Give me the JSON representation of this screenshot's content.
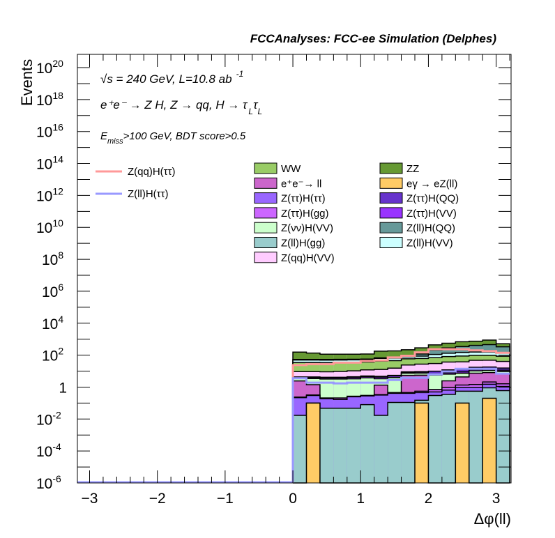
{
  "chart_data": {
    "type": "bar",
    "stacked": true,
    "title": "FCCAnalyses: FCC-ee Simulation (Delphes)",
    "xlabel": "Δφ(ll)",
    "ylabel": "Events",
    "xlim": [
      -3.18,
      3.22
    ],
    "ylim_log10": [
      -6,
      20.83
    ],
    "yscale": "log",
    "x_tick_labels": [
      "−3",
      "−2",
      "−1",
      "0",
      "1",
      "2",
      "3"
    ],
    "x_tick_values": [
      -3,
      -2,
      -1,
      0,
      1,
      2,
      3
    ],
    "y_tick_labels": [
      {
        "base": "10",
        "exp": "20",
        "v": 20
      },
      {
        "base": "10",
        "exp": "18",
        "v": 18
      },
      {
        "base": "10",
        "exp": "16",
        "v": 16
      },
      {
        "base": "10",
        "exp": "14",
        "v": 14
      },
      {
        "base": "10",
        "exp": "12",
        "v": 12
      },
      {
        "base": "10",
        "exp": "10",
        "v": 10
      },
      {
        "base": "10",
        "exp": "8",
        "v": 8
      },
      {
        "base": "10",
        "exp": "6",
        "v": 6
      },
      {
        "base": "10",
        "exp": "4",
        "v": 4
      },
      {
        "base": "10",
        "exp": "2",
        "v": 2
      },
      {
        "base": "1",
        "exp": "",
        "v": 0
      },
      {
        "base": "10",
        "exp": "-2",
        "v": -2
      },
      {
        "base": "10",
        "exp": "-4",
        "v": -4
      },
      {
        "base": "10",
        "exp": "-6",
        "v": -6
      }
    ],
    "bin_edges": [
      0,
      0.2,
      0.4,
      0.6,
      0.8,
      1.0,
      1.2,
      1.4,
      1.6,
      1.8,
      2.0,
      2.2,
      2.4,
      2.6,
      2.8,
      3.0,
      3.2
    ],
    "annotations": {
      "line1_main": "√s = 240 GeV, L=10.8 ab",
      "line1_sup": "-1",
      "line2_a": "e⁺e⁻ → Z H, Z  → qq, H  → τ",
      "line2_sub1": "L",
      "line2_b": "τ",
      "line2_sub2": "L",
      "line3_a": "E",
      "line3_sub": "miss",
      "line3_b": ">100 GeV, BDT score>0.5"
    },
    "series": [
      {
        "name": "eγ → eZ(ll)",
        "color": "#ffcc66",
        "values": [
          0,
          0.1,
          0,
          0,
          0,
          0,
          0,
          0,
          0,
          0.1,
          0,
          0,
          0.1,
          0,
          0.2,
          0
        ]
      },
      {
        "name": "Z(ll)H(gg)",
        "color": "#99cccc",
        "values": [
          0.017,
          0,
          0.048,
          0.048,
          0.048,
          0.08,
          0.017,
          0.11,
          0.11,
          0.05,
          0.3,
          0.35,
          0.45,
          0.55,
          0.7,
          0.6
        ]
      },
      {
        "name": "Z(ττ)H(ττ)",
        "color": "#9966ff",
        "values": [
          0.2,
          0.2,
          0.14,
          0.12,
          0.2,
          0.2,
          0.3,
          0.3,
          0.3,
          0.3,
          0.2,
          0.3,
          0.4,
          0.4,
          0.6,
          0.5
        ]
      },
      {
        "name": "Z(ττ)H(gg)",
        "color": "#cc66ff",
        "values": [
          0.02,
          0.02,
          0.02,
          0.04,
          0.02,
          0.02,
          0.02,
          0.05,
          0.05,
          0.1,
          0.2,
          0.3,
          0.4,
          0.5,
          0.6,
          0.5
        ]
      },
      {
        "name": "e⁺e⁻→ ll",
        "color": "#cc66cc",
        "values": [
          2.2,
          1.1,
          0,
          0,
          0,
          0,
          1.0,
          0,
          5,
          5,
          0,
          1.5,
          3,
          6,
          6,
          5
        ]
      },
      {
        "name": "Z(νν)H(VV)",
        "color": "#ccffcc",
        "values": [
          1,
          2,
          3,
          3,
          3,
          3.5,
          2,
          3.5,
          2,
          2,
          5,
          4,
          3,
          3,
          3,
          3
        ]
      },
      {
        "name": "Z(ττ)H(VV)",
        "color": "#9933ff",
        "values": [
          0.6,
          0.6,
          0.6,
          0.6,
          0.8,
          0.8,
          0.9,
          1,
          1,
          1.2,
          1.2,
          1.5,
          1.6,
          2,
          2,
          2
        ]
      },
      {
        "name": "Z(ττ)H(QQ)",
        "color": "#6633cc",
        "values": [
          0.3,
          0.3,
          0.3,
          0.3,
          0.4,
          0.4,
          0.5,
          0.5,
          0.6,
          0.6,
          3,
          4,
          4,
          5,
          5,
          4
        ]
      },
      {
        "name": "Z(qq)H(VV)",
        "color": "#ffccff",
        "values": [
          5,
          5,
          5,
          5.5,
          6,
          7,
          8,
          10,
          15,
          18,
          20,
          25,
          25,
          30,
          30,
          25
        ]
      },
      {
        "name": "WW",
        "color": "#99cc66",
        "values": [
          25,
          25,
          25,
          25,
          25,
          25,
          30,
          30,
          35,
          35,
          40,
          45,
          50,
          50,
          50,
          45
        ]
      },
      {
        "name": "Z(ll)H(VV)",
        "color": "#ccffff",
        "values": [
          15,
          15,
          15,
          15,
          15,
          15,
          20,
          20,
          20,
          25,
          40,
          50,
          60,
          60,
          60,
          50
        ]
      },
      {
        "name": "Z(ll)H(QQ)",
        "color": "#669999",
        "values": [
          5,
          5,
          5,
          5,
          5,
          5,
          5,
          10,
          20,
          30,
          100,
          150,
          200,
          250,
          300,
          200
        ]
      },
      {
        "name": "ZZ",
        "color": "#669933",
        "values": [
          100,
          80,
          60,
          60,
          60,
          60,
          110,
          110,
          120,
          170,
          230,
          280,
          340,
          340,
          420,
          180
        ]
      }
    ],
    "lines": [
      {
        "name": "Z(qq)H(ττ)",
        "color": "#ff9999",
        "values": [
          24,
          27,
          27,
          34,
          34,
          43,
          47,
          72,
          92,
          150,
          235,
          235,
          235,
          200,
          178,
          140
        ]
      },
      {
        "name": "Z(ll)H(ττ)",
        "color": "#9999ff",
        "values": [
          3.6,
          1.9,
          1.9,
          1.7,
          1.9,
          1.9,
          1.9,
          2.8,
          3.8,
          3.8,
          6.3,
          9.6,
          14,
          14,
          14,
          7
        ]
      }
    ],
    "legend_columns": [
      [
        "WW",
        "e⁺e⁻→ ll",
        "Z(ττ)H(ττ)",
        "Z(ττ)H(gg)",
        "Z(νν)H(VV)",
        "Z(ll)H(gg)",
        "Z(qq)H(VV)"
      ],
      [
        "ZZ",
        "eγ → eZ(ll)",
        "Z(ττ)H(QQ)",
        "Z(ττ)H(VV)",
        "Z(ll)H(QQ)",
        "Z(ll)H(VV)"
      ]
    ],
    "legend_placement": "top-center"
  }
}
